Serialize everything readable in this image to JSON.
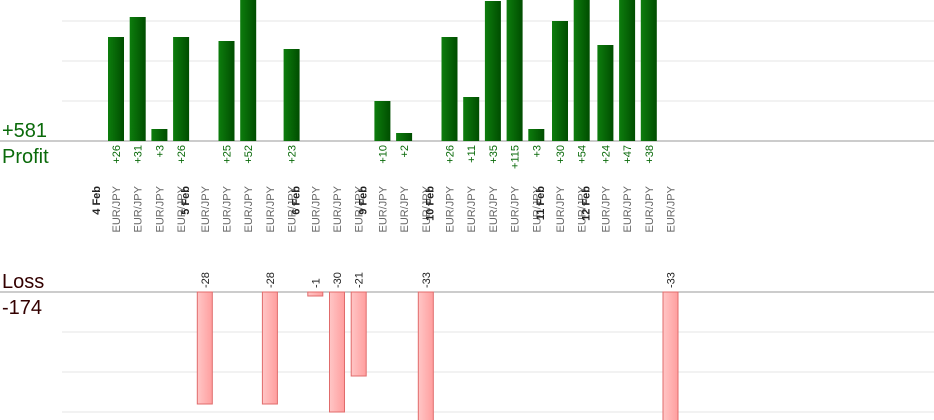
{
  "summary": {
    "profit_total": "+581",
    "profit_label": "Profit",
    "loss_label": "Loss",
    "loss_total": "-174"
  },
  "colors": {
    "profit_dark": "#004d00",
    "profit_light": "#0d7d0d",
    "loss_fill": "#ffb3b3",
    "loss_stroke": "#e06b6b",
    "profit_text": "#0a6a0a",
    "loss_text": "#330000"
  },
  "chart_data": {
    "type": "bar",
    "trades": [
      {
        "date": "4 Feb",
        "pair": "EUR/JPY",
        "pnl": 26
      },
      {
        "date": "",
        "pair": "EUR/JPY",
        "pnl": 31
      },
      {
        "date": "",
        "pair": "EUR/JPY",
        "pnl": 3
      },
      {
        "date": "",
        "pair": "EUR/JPY",
        "pnl": 26
      },
      {
        "date": "5 Feb",
        "pair": "EUR/JPY",
        "pnl": -28
      },
      {
        "date": "",
        "pair": "EUR/JPY",
        "pnl": 25
      },
      {
        "date": "",
        "pair": "EUR/JPY",
        "pnl": 52
      },
      {
        "date": "",
        "pair": "EUR/JPY",
        "pnl": -28
      },
      {
        "date": "",
        "pair": "EUR/JPY",
        "pnl": 23
      },
      {
        "date": "6 Feb",
        "pair": "EUR/JPY",
        "pnl": -1
      },
      {
        "date": "",
        "pair": "EUR/JPY",
        "pnl": -30
      },
      {
        "date": "",
        "pair": "EUR/JPY",
        "pnl": -21
      },
      {
        "date": "9 Feb",
        "pair": "EUR/JPY",
        "pnl": 10
      },
      {
        "date": "",
        "pair": "EUR/JPY",
        "pnl": 2
      },
      {
        "date": "",
        "pair": "EUR/JPY",
        "pnl": -33
      },
      {
        "date": "10 Feb",
        "pair": "EUR/JPY",
        "pnl": 26
      },
      {
        "date": "",
        "pair": "EUR/JPY",
        "pnl": 11
      },
      {
        "date": "",
        "pair": "EUR/JPY",
        "pnl": 35
      },
      {
        "date": "",
        "pair": "EUR/JPY",
        "pnl": 115
      },
      {
        "date": "",
        "pair": "EUR/JPY",
        "pnl": 3
      },
      {
        "date": "11 Feb",
        "pair": "EUR/JPY",
        "pnl": 30
      },
      {
        "date": "",
        "pair": "EUR/JPY",
        "pnl": 54
      },
      {
        "date": "12 Feb",
        "pair": "EUR/JPY",
        "pnl": 24
      },
      {
        "date": "",
        "pair": "EUR/JPY",
        "pnl": 47
      },
      {
        "date": "",
        "pair": "EUR/JPY",
        "pnl": 38
      },
      {
        "date": "",
        "pair": "EUR/JPY",
        "pnl": -33
      }
    ],
    "grid": true,
    "legend": "none"
  }
}
